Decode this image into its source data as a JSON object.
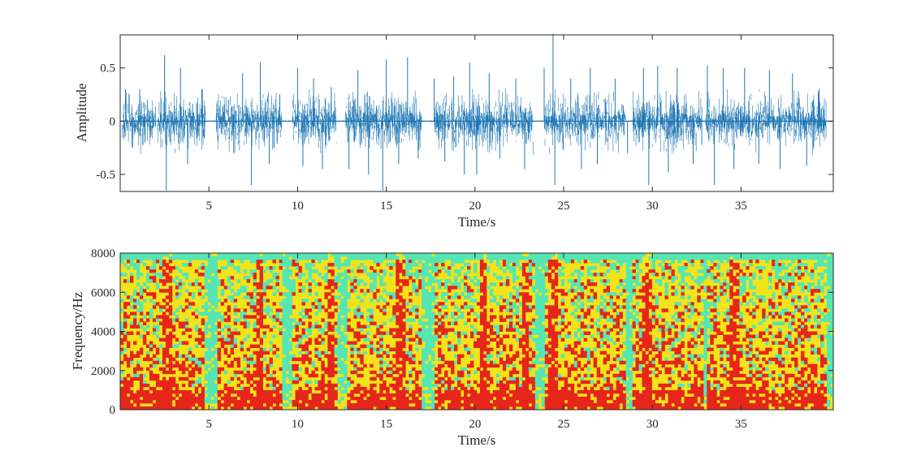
{
  "chart_data": [
    {
      "type": "line",
      "title": "",
      "xlabel": "Time/s",
      "ylabel": "Amplitude",
      "xlim": [
        0,
        40.2
      ],
      "ylim": [
        -0.66,
        0.81
      ],
      "xticks": [
        5,
        10,
        15,
        20,
        25,
        30,
        35
      ],
      "yticks": [
        -0.5,
        0,
        0.5
      ],
      "ytick_labels": [
        "-0.5",
        "0",
        "0.5"
      ],
      "grid": false,
      "box": true,
      "series": [
        {
          "color": "#1f77b4",
          "x": [
            0.3,
            0.7,
            1.1,
            1.4,
            2.5,
            2.6,
            3.4,
            3.8,
            4.6,
            5.5,
            6.1,
            6.4,
            6.9,
            7.4,
            7.9,
            8.4,
            9.0,
            10.0,
            10.3,
            10.9,
            11.4,
            11.9,
            12.9,
            13.4,
            14.0,
            14.8,
            15.0,
            15.7,
            16.2,
            16.8,
            17.7,
            18.3,
            18.8,
            19.4,
            19.7,
            20.1,
            20.8,
            21.4,
            22.3,
            22.8,
            23.9,
            24.4,
            24.5,
            25.4,
            26.0,
            26.5,
            26.9,
            27.9,
            28.6,
            29.5,
            29.8,
            30.3,
            30.9,
            31.4,
            32.3,
            33.1,
            33.5,
            34.0,
            34.6,
            35.2,
            36.0,
            36.6,
            37.2,
            37.9,
            38.7,
            39.4
          ],
          "y": [
            0.3,
            -0.25,
            0.3,
            -0.2,
            0.62,
            -0.65,
            0.5,
            -0.4,
            0.3,
            -0.18,
            0.2,
            -0.3,
            0.45,
            -0.6,
            0.55,
            -0.4,
            0.25,
            0.5,
            -0.42,
            0.4,
            -0.45,
            0.32,
            -0.45,
            0.48,
            -0.5,
            -0.65,
            0.58,
            -0.4,
            0.6,
            -0.35,
            0.4,
            -0.38,
            0.42,
            -0.5,
            0.55,
            -0.5,
            0.45,
            -0.35,
            0.4,
            -0.45,
            0.5,
            0.82,
            -0.6,
            0.4,
            -0.45,
            0.5,
            -0.4,
            0.4,
            -0.3,
            0.5,
            -0.6,
            0.52,
            -0.48,
            0.5,
            -0.4,
            0.52,
            -0.6,
            0.5,
            -0.45,
            0.5,
            -0.4,
            0.48,
            -0.45,
            0.45,
            -0.42,
            0.3
          ]
        }
      ],
      "speech_segments_s": [
        [
          0.1,
          2.0
        ],
        [
          2.1,
          4.8
        ],
        [
          5.4,
          9.1
        ],
        [
          9.7,
          12.2
        ],
        [
          12.7,
          17.0
        ],
        [
          17.7,
          23.3
        ],
        [
          23.9,
          28.5
        ],
        [
          28.9,
          32.8
        ],
        [
          33.0,
          39.8
        ]
      ]
    },
    {
      "type": "heatmap",
      "title": "",
      "xlabel": "Time/s",
      "ylabel": "Frequency/Hz",
      "xlim": [
        0,
        40.2
      ],
      "ylim": [
        0,
        8000
      ],
      "xticks": [
        5,
        10,
        15,
        20,
        25,
        30,
        35
      ],
      "yticks": [
        0,
        2000,
        4000,
        6000,
        8000
      ],
      "colormap": "jet",
      "colors": {
        "high": "#e6261a",
        "mid": "#f2e31a",
        "low": "#55e6b4"
      },
      "silent_bands_s": [
        [
          4.8,
          5.4
        ],
        [
          9.1,
          9.7
        ],
        [
          12.2,
          12.7
        ],
        [
          17.0,
          17.7
        ],
        [
          23.3,
          23.9
        ],
        [
          28.5,
          28.9
        ],
        [
          32.8,
          33.0
        ],
        [
          39.8,
          40.2
        ]
      ],
      "strong_bands_s": [
        [
          2.4,
          2.9
        ],
        [
          7.6,
          8.1
        ],
        [
          11.7,
          12.1
        ],
        [
          15.6,
          16.1
        ],
        [
          20.2,
          20.7
        ],
        [
          22.6,
          23.1
        ],
        [
          24.2,
          24.6
        ],
        [
          29.5,
          30.0
        ],
        [
          34.4,
          34.9
        ]
      ]
    }
  ]
}
